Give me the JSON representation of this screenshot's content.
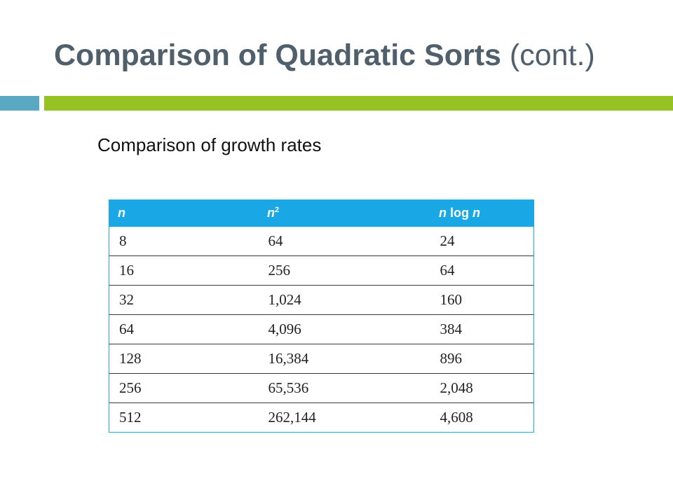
{
  "slide": {
    "title_bold": "Comparison of Quadratic Sorts",
    "title_rest": "(cont.)",
    "subtitle": "Comparison of growth rates"
  },
  "colors": {
    "title": "#4f5f6c",
    "accent_blue": "#5aa8c2",
    "accent_green": "#97c224",
    "table_header": "#1aa7e6"
  },
  "table": {
    "headers": [
      {
        "base": "n",
        "sup": "",
        "rest": ""
      },
      {
        "base": "n",
        "sup": "2",
        "rest": ""
      },
      {
        "base": "n",
        "sup": "",
        "rest": " log ",
        "tail": "n"
      }
    ],
    "rows": [
      [
        "8",
        "64",
        "24"
      ],
      [
        "16",
        "256",
        "64"
      ],
      [
        "32",
        "1,024",
        "160"
      ],
      [
        "64",
        "4,096",
        "384"
      ],
      [
        "128",
        "16,384",
        "896"
      ],
      [
        "256",
        "65,536",
        "2,048"
      ],
      [
        "512",
        "262,144",
        "4,608"
      ]
    ]
  }
}
